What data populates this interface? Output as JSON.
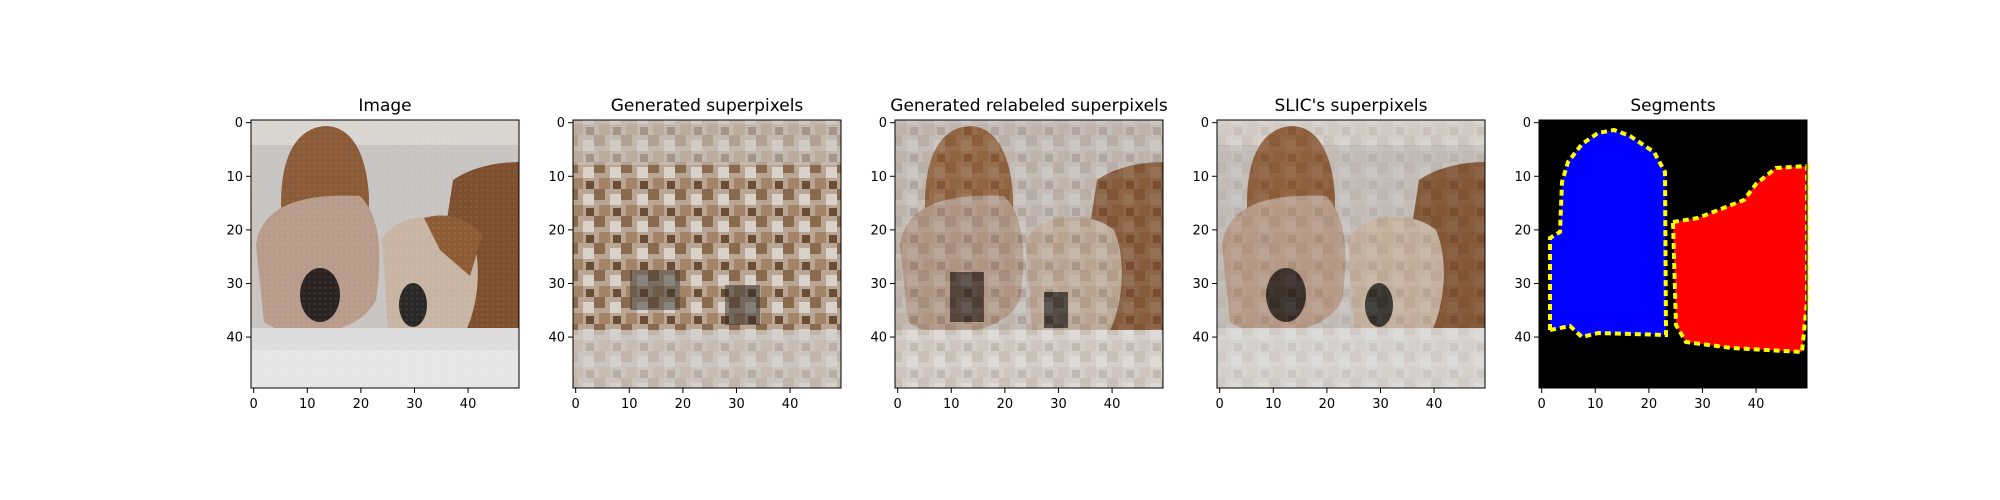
{
  "chart_data": [
    {
      "type": "image",
      "title": "Image",
      "xlim": [
        -0.5,
        49.5
      ],
      "ylim": [
        49.5,
        -0.5
      ],
      "xticks": [
        0,
        10,
        20,
        30,
        40
      ],
      "yticks": [
        0,
        10,
        20,
        30,
        40
      ],
      "content": "photo of two bulldogs"
    },
    {
      "type": "image",
      "title": "Generated superpixels",
      "xlim": [
        -0.5,
        49.5
      ],
      "ylim": [
        49.5,
        -0.5
      ],
      "xticks": [
        0,
        10,
        20,
        30,
        40
      ],
      "yticks": [
        0,
        10,
        20,
        30,
        40
      ],
      "content": "blocky random superpixel mosaic"
    },
    {
      "type": "image",
      "title": "Generated relabeled superpixels",
      "xlim": [
        -0.5,
        49.5
      ],
      "ylim": [
        49.5,
        -0.5
      ],
      "xticks": [
        0,
        10,
        20,
        30,
        40
      ],
      "yticks": [
        0,
        10,
        20,
        30,
        40
      ],
      "content": "relabeled superpixel mosaic of the dogs"
    },
    {
      "type": "image",
      "title": "SLIC's superpixels",
      "xlim": [
        -0.5,
        49.5
      ],
      "ylim": [
        49.5,
        -0.5
      ],
      "xticks": [
        0,
        10,
        20,
        30,
        40
      ],
      "yticks": [
        0,
        10,
        20,
        30,
        40
      ],
      "content": "SLIC superpixel version of the dogs"
    },
    {
      "type": "image",
      "title": "Segments",
      "xlim": [
        -0.5,
        49.5
      ],
      "ylim": [
        49.5,
        -0.5
      ],
      "xticks": [
        0,
        10,
        20,
        30,
        40
      ],
      "yticks": [
        0,
        10,
        20,
        30,
        40
      ],
      "content": "segmentation mask",
      "colors": {
        "background": "#000000",
        "segment_1": "#0000ff",
        "segment_2": "#ff0000",
        "boundary": "#ffff00"
      }
    }
  ]
}
